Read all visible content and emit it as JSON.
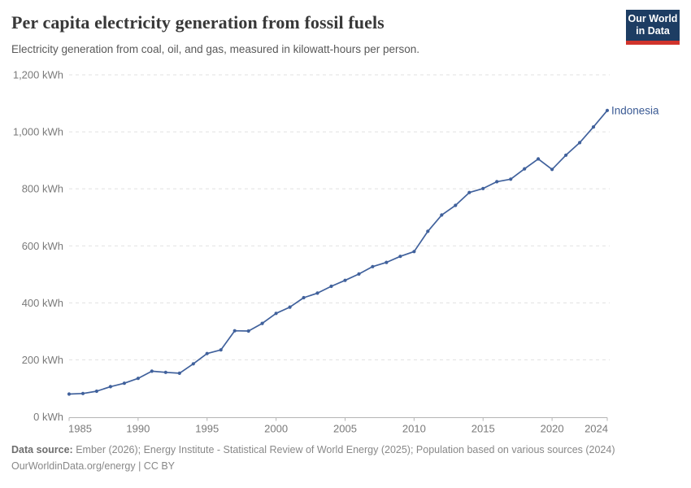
{
  "header": {
    "logo_line1": "Our World",
    "logo_line2": "in Data",
    "logo_bg_color": "#1d3d63",
    "logo_accent_color": "#d0342c"
  },
  "chart_data": {
    "type": "line",
    "title": "Per capita electricity generation from fossil fuels",
    "subtitle": "Electricity generation from coal, oil, and gas, measured in kilowatt-hours per person.",
    "x": [
      1985,
      1986,
      1987,
      1988,
      1989,
      1990,
      1991,
      1992,
      1993,
      1994,
      1995,
      1996,
      1997,
      1998,
      1999,
      2000,
      2001,
      2002,
      2003,
      2004,
      2005,
      2006,
      2007,
      2008,
      2009,
      2010,
      2011,
      2012,
      2013,
      2014,
      2015,
      2016,
      2017,
      2018,
      2019,
      2020,
      2021,
      2022,
      2023,
      2024
    ],
    "series": [
      {
        "name": "Indonesia",
        "color": "#40619c",
        "label_color": "#3a5a94",
        "values": [
          80,
          82,
          90,
          106,
          118,
          135,
          160,
          156,
          153,
          186,
          222,
          235,
          302,
          301,
          328,
          363,
          385,
          418,
          434,
          458,
          479,
          501,
          527,
          542,
          563,
          580,
          651,
          708,
          742,
          787,
          801,
          825,
          834,
          870,
          905,
          868,
          918,
          962,
          1017,
          1075
        ]
      }
    ],
    "xlim": [
      1985,
      2024
    ],
    "ylim": [
      0,
      1200
    ],
    "x_ticks": [
      1985,
      1990,
      1995,
      2000,
      2005,
      2010,
      2015,
      2020,
      2024
    ],
    "y_ticks": [
      0,
      200,
      400,
      600,
      800,
      1000,
      1200
    ],
    "y_tick_labels": [
      "0 kWh",
      "200 kWh",
      "400 kWh",
      "600 kWh",
      "800 kWh",
      "1,000 kWh",
      "1,200 kWh"
    ],
    "grid": "horizontal-dashed",
    "legend": "series-label-at-line-end"
  },
  "footer": {
    "datasource_label": "Data source:",
    "datasource_text": " Ember (2026); Energy Institute - Statistical Review of World Energy (2025); Population based on various sources (2024)",
    "license_line": "OurWorldinData.org/energy | CC BY"
  }
}
